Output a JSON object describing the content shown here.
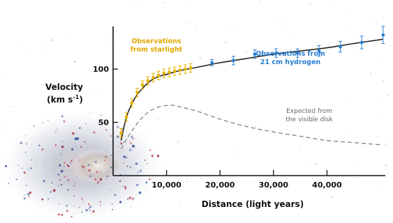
{
  "chart_data": {
    "type": "scatter",
    "xlabel": "Distance (light years)",
    "ylabel": "Velocity",
    "ylabel_unit_base": "(km s",
    "ylabel_unit_exp": "-1",
    "ylabel_unit_close": ")",
    "xlim": [
      0,
      50000
    ],
    "ylim": [
      0,
      140
    ],
    "xticks": [
      10000,
      20000,
      30000,
      40000
    ],
    "xtick_labels": [
      "10,000",
      "20,000",
      "30,000",
      "40,000"
    ],
    "yticks": [
      50,
      100
    ],
    "ytick_labels": [
      "50",
      "100"
    ],
    "grid": false,
    "series": [
      {
        "name": "Observations from starlight",
        "label_lines": [
          "Observations",
          "from starlight"
        ],
        "color": "#e8b100",
        "x": [
          1500,
          2500,
          3500,
          4500,
          5500,
          6500,
          7500,
          8500,
          9500,
          10500,
          11500,
          12500,
          13500,
          14500
        ],
        "y": [
          40,
          55,
          68,
          78,
          85,
          89,
          92,
          94,
          96,
          97,
          98,
          99,
          100,
          101
        ],
        "yerr": [
          4,
          4,
          4,
          4,
          4,
          4,
          4,
          4,
          4,
          4,
          4,
          4,
          4,
          4
        ]
      },
      {
        "name": "Observations from 21 cm hydrogen",
        "label_lines": [
          "Observations from",
          "21 cm hydrogen"
        ],
        "color": "#2a7fd4",
        "x": [
          18500,
          22500,
          26500,
          30500,
          34500,
          38500,
          42500,
          46500,
          50500
        ],
        "y": [
          106,
          108,
          114,
          115,
          115,
          117,
          121,
          125,
          132
        ],
        "yerr": [
          3,
          4,
          4,
          4,
          4,
          5,
          5,
          6,
          8
        ]
      },
      {
        "name": "Expected from the visible disk",
        "label_lines": [
          "Expected from",
          "the visible disk"
        ],
        "color": "#8a8a8a",
        "style": "dashed",
        "x": [
          1500,
          3000,
          5000,
          7000,
          9000,
          11000,
          13000,
          16000,
          20000,
          25000,
          30000,
          35000,
          40000,
          45000,
          50000
        ],
        "y": [
          25,
          38,
          52,
          61,
          65,
          66,
          64,
          60,
          53,
          46,
          41,
          37,
          33,
          31,
          29
        ]
      }
    ],
    "fit_curve": {
      "color": "#222222",
      "x": [
        1500,
        2500,
        4000,
        5500,
        7000,
        8500,
        10000,
        12000,
        14000,
        17000,
        20000,
        25000,
        30000,
        35000,
        40000,
        45000,
        50500
      ],
      "y": [
        33,
        55,
        72,
        82,
        89,
        93,
        95,
        98,
        100,
        103,
        106,
        110,
        114,
        117,
        120,
        124,
        128
      ]
    }
  }
}
